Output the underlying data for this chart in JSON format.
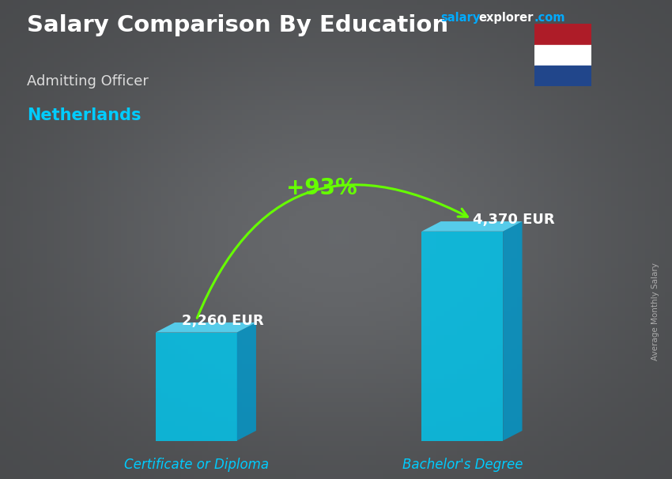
{
  "title": "Salary Comparison By Education",
  "subtitle_job": "Admitting Officer",
  "subtitle_country": "Netherlands",
  "categories": [
    "Certificate or Diploma",
    "Bachelor's Degree"
  ],
  "values": [
    2260,
    4370
  ],
  "value_labels": [
    "2,260 EUR",
    "4,370 EUR"
  ],
  "pct_change": "+93%",
  "bar_color_face": "#00C8F0",
  "bar_color_side": "#0099CC",
  "bar_color_top": "#55DDFF",
  "bg_dark": "#3a3a3a",
  "title_color": "#FFFFFF",
  "subtitle_job_color": "#DDDDDD",
  "subtitle_country_color": "#00CCFF",
  "category_label_color": "#00CCFF",
  "value_label_color": "#FFFFFF",
  "pct_color": "#66FF00",
  "arrow_color": "#66FF00",
  "site_salary_color": "#00AAFF",
  "site_explorer_color": "#FFFFFF",
  "site_com_color": "#00AAFF",
  "ylabel_color": "#AAAAAA",
  "ylabel_text": "Average Monthly Salary",
  "bar_alpha": 0.82,
  "flag_red": "#AE1C28",
  "flag_white": "#FFFFFF",
  "flag_blue": "#21468B"
}
